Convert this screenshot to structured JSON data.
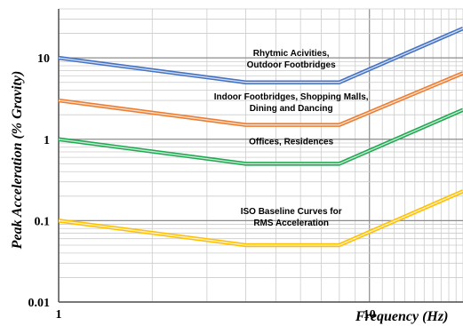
{
  "chart_data": {
    "type": "line",
    "xscale": "log",
    "yscale": "log",
    "xlim": [
      1,
      20
    ],
    "ylim": [
      0.01,
      40
    ],
    "grid": true,
    "xlabel": "Frequency (Hz)",
    "ylabel": "Peak Acceleration (% Gravity)",
    "x_ticks": [
      {
        "value": 1,
        "label": "1"
      },
      {
        "value": 10,
        "label": "10"
      }
    ],
    "y_ticks": [
      {
        "value": 0.01,
        "label": "0.01"
      },
      {
        "value": 0.1,
        "label": "0.1"
      },
      {
        "value": 1,
        "label": "1"
      },
      {
        "value": 10,
        "label": "10"
      }
    ],
    "series": [
      {
        "color": "#4472c4",
        "x": [
          1,
          4,
          8,
          20
        ],
        "y": [
          10,
          5,
          5,
          23
        ]
      },
      {
        "color": "#ed7d31",
        "x": [
          1,
          4,
          8,
          20
        ],
        "y": [
          3,
          1.5,
          1.5,
          6.5
        ]
      },
      {
        "color": "#21a852",
        "x": [
          1,
          4,
          8,
          20
        ],
        "y": [
          1,
          0.5,
          0.5,
          2.3
        ]
      },
      {
        "color": "#ffc000",
        "x": [
          1,
          4,
          8,
          20
        ],
        "y": [
          0.1,
          0.05,
          0.05,
          0.23
        ]
      }
    ],
    "annotations": [
      {
        "lines": [
          "Rhytmic Acivities,",
          "Outdoor Footbridges"
        ],
        "x": 5.6,
        "y": 10.5
      },
      {
        "lines": [
          "Indoor Footbridges, Shopping Malls,",
          "Dining and Dancing"
        ],
        "x": 5.6,
        "y": 3.1
      },
      {
        "lines": [
          "Offices, Residences"
        ],
        "x": 5.6,
        "y": 0.87
      },
      {
        "lines": [
          "ISO Baseline Curves for",
          "RMS Acceleration"
        ],
        "x": 5.6,
        "y": 0.12
      }
    ]
  }
}
